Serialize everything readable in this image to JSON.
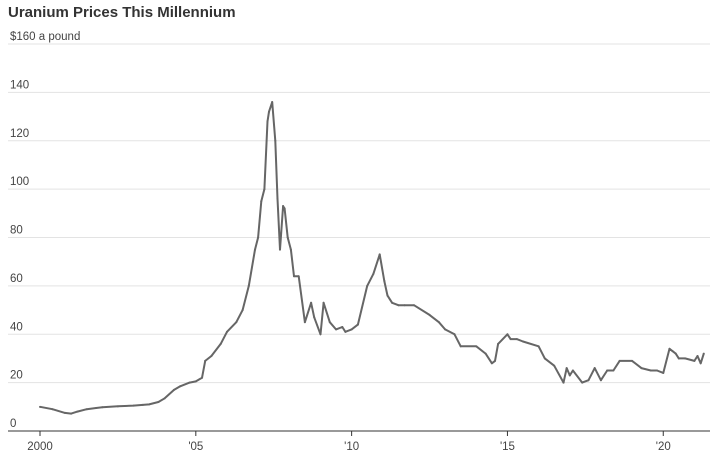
{
  "chart_data": {
    "type": "line",
    "title": "Uranium Prices This Millennium",
    "top_label": "$160 a pound",
    "ylim": [
      0,
      160
    ],
    "yticks": [
      0,
      20,
      40,
      60,
      80,
      100,
      120,
      140
    ],
    "ytick_labels": [
      "0",
      "20",
      "40",
      "60",
      "80",
      "100",
      "120",
      "140"
    ],
    "xlim": [
      2000,
      2021.5
    ],
    "xticks": [
      2000,
      2005,
      2010,
      2015,
      2020
    ],
    "xtick_labels": [
      "2000",
      "'05",
      "'10",
      "'15",
      "'20"
    ],
    "grid": true,
    "line_color": "#666666",
    "series": [
      {
        "x": [
          2000.0,
          2000.4,
          2000.8,
          2001.0,
          2001.2,
          2001.5,
          2001.8,
          2002.0,
          2002.5,
          2003.0,
          2003.3,
          2003.5,
          2003.8,
          2004.0,
          2004.3,
          2004.5,
          2004.8,
          2005.0,
          2005.2,
          2005.3,
          2005.5,
          2005.8,
          2006.0,
          2006.3,
          2006.5,
          2006.7,
          2006.9,
          2007.0,
          2007.1,
          2007.2,
          2007.3,
          2007.35,
          2007.45,
          2007.55,
          2007.62,
          2007.7,
          2007.8,
          2007.85,
          2007.95,
          2008.05,
          2008.15,
          2008.3,
          2008.5,
          2008.7,
          2008.8,
          2009.0,
          2009.1,
          2009.3,
          2009.5,
          2009.7,
          2009.8,
          2010.0,
          2010.2,
          2010.5,
          2010.7,
          2010.9,
          2011.05,
          2011.15,
          2011.3,
          2011.5,
          2011.7,
          2012.0,
          2012.5,
          2012.8,
          2013.0,
          2013.3,
          2013.5,
          2014.0,
          2014.3,
          2014.5,
          2014.6,
          2014.7,
          2015.0,
          2015.1,
          2015.3,
          2015.5,
          2016.0,
          2016.2,
          2016.5,
          2016.8,
          2016.9,
          2017.0,
          2017.1,
          2017.4,
          2017.6,
          2017.8,
          2018.0,
          2018.2,
          2018.4,
          2018.6,
          2019.0,
          2019.3,
          2019.6,
          2019.8,
          2020.0,
          2020.2,
          2020.3,
          2020.4,
          2020.5,
          2020.7,
          2021.0,
          2021.1,
          2021.2,
          2021.3
        ],
        "values": [
          10,
          9,
          7.5,
          7.2,
          8,
          9,
          9.5,
          9.8,
          10.2,
          10.5,
          10.8,
          11,
          12,
          13.5,
          17,
          18.5,
          20,
          20.5,
          22,
          29,
          31,
          36,
          41,
          45,
          50,
          60,
          75,
          80,
          95,
          100,
          128,
          132,
          136,
          120,
          96,
          75,
          93,
          92,
          80,
          75,
          64,
          64,
          45,
          53,
          47,
          40,
          53,
          45,
          42,
          43,
          41,
          42,
          44,
          60,
          65,
          73,
          62,
          56,
          53,
          52,
          52,
          52,
          48,
          45,
          42,
          40,
          35,
          35,
          32,
          28,
          29,
          36,
          40,
          38,
          38,
          37,
          35,
          30,
          27,
          20,
          26,
          23,
          25,
          20,
          21,
          26,
          21,
          25,
          25,
          29,
          29,
          26,
          25,
          25,
          24,
          34,
          33,
          32,
          30,
          30,
          29,
          31,
          28,
          32
        ]
      }
    ]
  }
}
